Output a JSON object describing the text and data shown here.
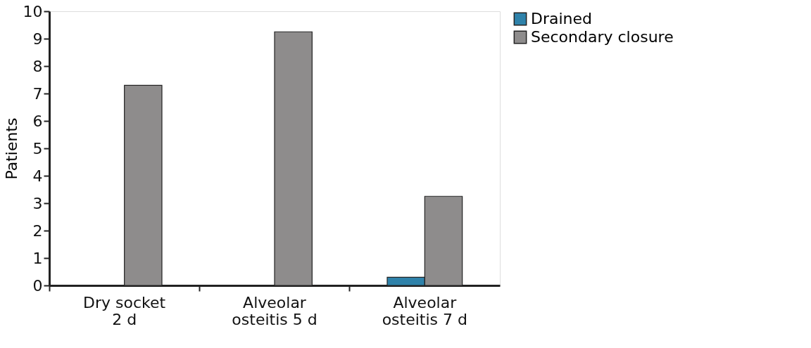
{
  "chart_data": {
    "type": "bar",
    "ylabel": "Patients",
    "categories": [
      "Dry socket\n2 d",
      "Alveolar\nosteitis 5 d",
      "Alveolar\nosteitis 7 d"
    ],
    "series": [
      {
        "name": "Drained",
        "color": "#2f82aa",
        "values": [
          null,
          null,
          0.3
        ]
      },
      {
        "name": "Secondary closure",
        "color": "#8e8c8c",
        "values": [
          7.3,
          9.25,
          3.25
        ]
      }
    ],
    "ylim": [
      0,
      10
    ],
    "yticks": [
      0,
      1,
      2,
      3,
      4,
      5,
      6,
      7,
      8,
      9,
      10
    ],
    "grid": false,
    "legend": "top right"
  }
}
